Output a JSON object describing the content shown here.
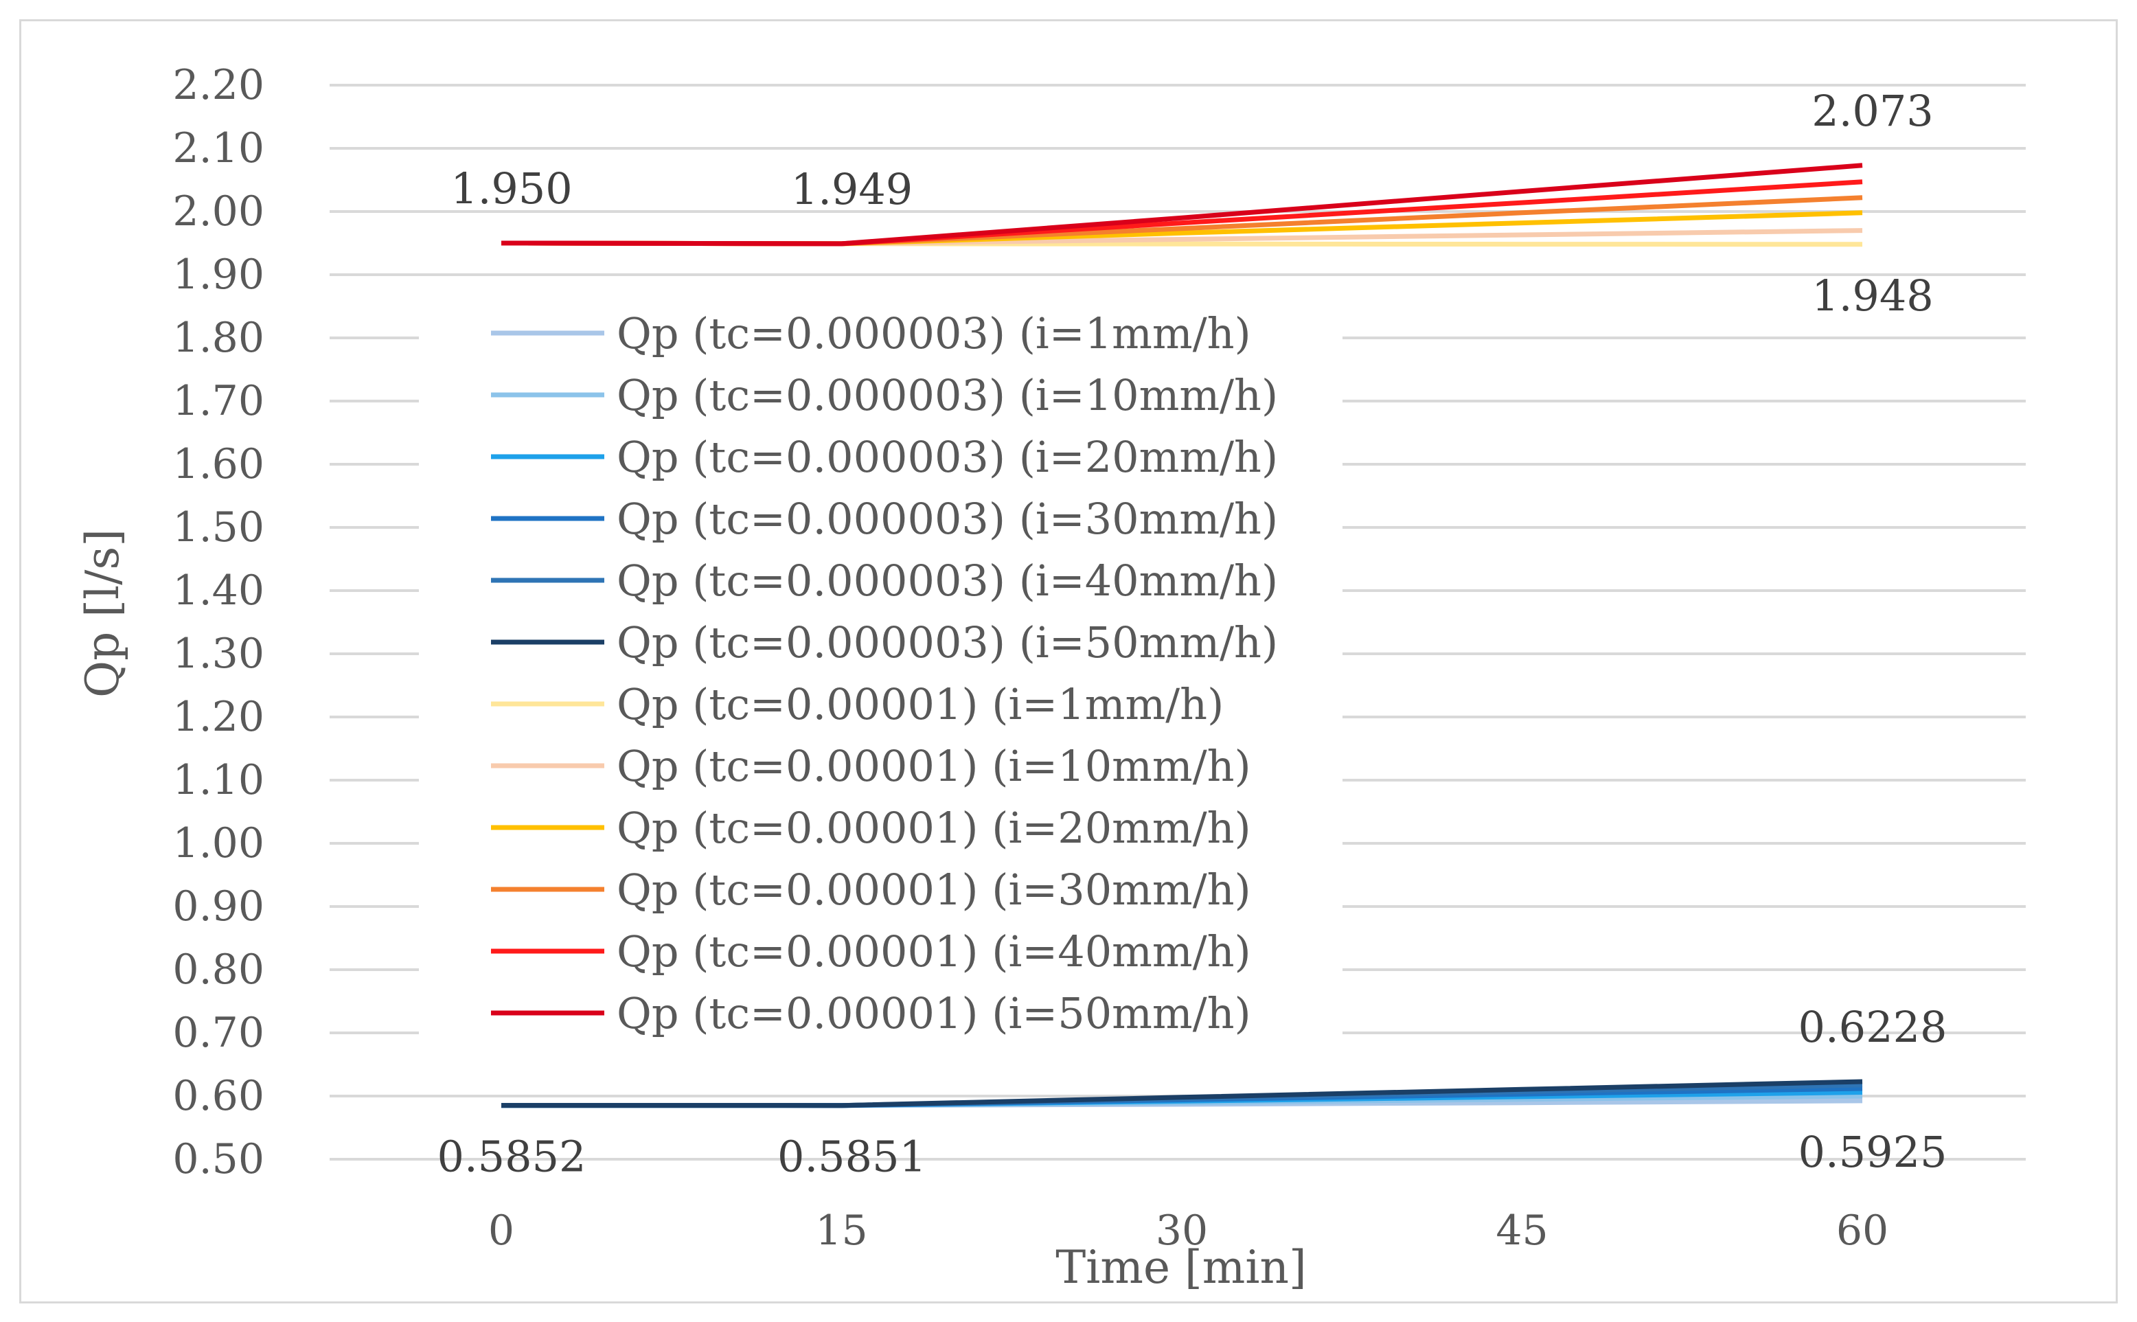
{
  "chart_data": {
    "type": "line",
    "title": "",
    "xlabel": "Time [min]",
    "ylabel": "Qp [l/s]",
    "x": [
      0,
      15,
      30,
      45,
      60
    ],
    "xticks": [
      "0",
      "15",
      "30",
      "45",
      "60"
    ],
    "ylim": [
      0.5,
      2.2
    ],
    "yticks": [
      "0.50",
      "0.60",
      "0.70",
      "0.80",
      "0.90",
      "1.00",
      "1.10",
      "1.20",
      "1.30",
      "1.40",
      "1.50",
      "1.60",
      "1.70",
      "1.80",
      "1.90",
      "2.00",
      "2.10",
      "2.20"
    ],
    "grid": true,
    "legend_position": "center-left",
    "series": [
      {
        "name": "Qp (tc=0.000003) (i=1mm/h)",
        "color": "#a9c6e8",
        "values": [
          0.5852,
          0.5851,
          0.587,
          0.5895,
          0.5925
        ]
      },
      {
        "name": "Qp (tc=0.000003) (i=10mm/h)",
        "color": "#8cc3ea",
        "values": [
          0.5852,
          0.5851,
          0.5895,
          0.595,
          0.6
        ]
      },
      {
        "name": "Qp (tc=0.000003) (i=20mm/h)",
        "color": "#1ea1ea",
        "values": [
          0.5852,
          0.5851,
          0.592,
          0.599,
          0.606
        ]
      },
      {
        "name": "Qp (tc=0.000003) (i=30mm/h)",
        "color": "#1f73c4",
        "values": [
          0.5852,
          0.5851,
          0.594,
          0.603,
          0.612
        ]
      },
      {
        "name": "Qp (tc=0.000003) (i=40mm/h)",
        "color": "#2e74b5",
        "values": [
          0.5852,
          0.5851,
          0.596,
          0.607,
          0.6175
        ]
      },
      {
        "name": "Qp (tc=0.000003) (i=50mm/h)",
        "color": "#1b3f66",
        "values": [
          0.5852,
          0.5851,
          0.598,
          0.6105,
          0.6228
        ]
      },
      {
        "name": "Qp (tc=0.00001) (i=1mm/h)",
        "color": "#ffe699",
        "values": [
          1.95,
          1.949,
          1.9487,
          1.9483,
          1.948
        ]
      },
      {
        "name": "Qp (tc=0.00001) (i=10mm/h)",
        "color": "#f8cbad",
        "values": [
          1.95,
          1.949,
          1.956,
          1.963,
          1.97
        ]
      },
      {
        "name": "Qp (tc=0.00001) (i=20mm/h)",
        "color": "#ffc000",
        "values": [
          1.95,
          1.949,
          1.966,
          1.982,
          1.998
        ]
      },
      {
        "name": "Qp (tc=0.00001) (i=30mm/h)",
        "color": "#f4802e",
        "values": [
          1.95,
          1.949,
          1.973,
          1.998,
          2.022
        ]
      },
      {
        "name": "Qp (tc=0.00001) (i=40mm/h)",
        "color": "#ff1a1a",
        "values": [
          1.95,
          1.949,
          1.982,
          2.014,
          2.047
        ]
      },
      {
        "name": "Qp (tc=0.00001) (i=50mm/h)",
        "color": "#d9001a",
        "values": [
          1.95,
          1.949,
          1.99,
          2.032,
          2.073
        ]
      }
    ],
    "annotations": [
      {
        "text": "1.950",
        "x": 0,
        "y": 1.95,
        "pos": "above"
      },
      {
        "text": "1.949",
        "x": 15,
        "y": 1.949,
        "pos": "above"
      },
      {
        "text": "2.073",
        "x": 60,
        "y": 2.073,
        "pos": "above"
      },
      {
        "text": "1.948",
        "x": 60,
        "y": 1.948,
        "pos": "below"
      },
      {
        "text": "0.6228",
        "x": 60,
        "y": 0.6228,
        "pos": "above"
      },
      {
        "text": "0.5852",
        "x": 0,
        "y": 0.5852,
        "pos": "below"
      },
      {
        "text": "0.5851",
        "x": 15,
        "y": 0.5851,
        "pos": "below"
      },
      {
        "text": "0.5925",
        "x": 60,
        "y": 0.5925,
        "pos": "below"
      }
    ]
  }
}
